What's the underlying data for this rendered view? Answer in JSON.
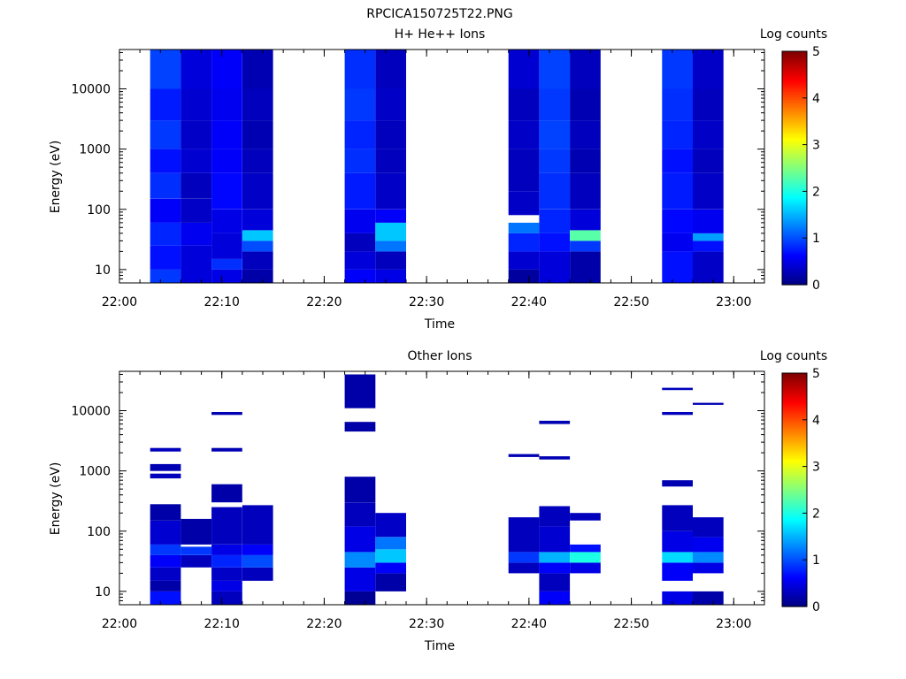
{
  "figure": {
    "title": "RPCICA150725T22.PNG"
  },
  "colorbar": {
    "label": "Log counts",
    "range": [
      0,
      5
    ],
    "ticks": [
      "0",
      "1",
      "2",
      "3",
      "4",
      "5"
    ]
  },
  "chart_data": [
    {
      "type": "heatmap",
      "title": "H+ He++ Ions",
      "xlabel": "Time",
      "ylabel": "Energy (eV)",
      "xlim": [
        "22:00",
        "23:03"
      ],
      "xticks": [
        "22:00",
        "22:10",
        "22:20",
        "22:30",
        "22:40",
        "22:50",
        "23:00"
      ],
      "yscale": "log",
      "ylim": [
        6,
        45000
      ],
      "yticks": [
        "10",
        "100",
        "1000",
        "10000"
      ],
      "zlabel": "Log counts",
      "zlim": [
        0,
        5
      ],
      "columns": [
        {
          "start": "22:03",
          "end": "22:06",
          "bands": [
            [
              6,
              10,
              0.9
            ],
            [
              10,
              25,
              0.7
            ],
            [
              25,
              60,
              0.8
            ],
            [
              60,
              150,
              0.6
            ],
            [
              150,
              400,
              0.85
            ],
            [
              400,
              1000,
              0.7
            ],
            [
              1000,
              3000,
              0.9
            ],
            [
              3000,
              10000,
              0.75
            ],
            [
              10000,
              45000,
              0.95
            ]
          ]
        },
        {
          "start": "22:06",
          "end": "22:09",
          "bands": [
            [
              6,
              25,
              0.45
            ],
            [
              25,
              60,
              0.55
            ],
            [
              60,
              150,
              0.35
            ],
            [
              150,
              400,
              0.3
            ],
            [
              400,
              1000,
              0.4
            ],
            [
              1000,
              3000,
              0.35
            ],
            [
              3000,
              10000,
              0.4
            ],
            [
              10000,
              45000,
              0.45
            ]
          ]
        },
        {
          "start": "22:09",
          "end": "22:12",
          "bands": [
            [
              6,
              10,
              0.5
            ],
            [
              10,
              15,
              0.85
            ],
            [
              15,
              40,
              0.45
            ],
            [
              40,
              100,
              0.5
            ],
            [
              100,
              400,
              0.65
            ],
            [
              400,
              1000,
              0.6
            ],
            [
              1000,
              3000,
              0.6
            ],
            [
              3000,
              10000,
              0.55
            ],
            [
              10000,
              45000,
              0.6
            ]
          ]
        },
        {
          "start": "22:12",
          "end": "22:15",
          "bands": [
            [
              6,
              10,
              0.2
            ],
            [
              10,
              20,
              0.3
            ],
            [
              20,
              30,
              1.0
            ],
            [
              30,
              45,
              1.6
            ],
            [
              45,
              100,
              0.45
            ],
            [
              100,
              400,
              0.35
            ],
            [
              400,
              1000,
              0.3
            ],
            [
              1000,
              3000,
              0.25
            ],
            [
              3000,
              10000,
              0.3
            ],
            [
              10000,
              45000,
              0.25
            ]
          ]
        },
        {
          "start": "22:22",
          "end": "22:25",
          "bands": [
            [
              6,
              10,
              0.6
            ],
            [
              10,
              20,
              0.45
            ],
            [
              20,
              40,
              0.3
            ],
            [
              40,
              100,
              0.55
            ],
            [
              100,
              400,
              0.75
            ],
            [
              400,
              1000,
              0.85
            ],
            [
              1000,
              3000,
              0.8
            ],
            [
              3000,
              10000,
              0.9
            ],
            [
              10000,
              45000,
              0.85
            ]
          ]
        },
        {
          "start": "22:25",
          "end": "22:28",
          "bands": [
            [
              6,
              10,
              0.5
            ],
            [
              10,
              20,
              0.3
            ],
            [
              20,
              30,
              1.2
            ],
            [
              30,
              60,
              1.6
            ],
            [
              60,
              100,
              0.6
            ],
            [
              100,
              400,
              0.35
            ],
            [
              400,
              1000,
              0.3
            ],
            [
              1000,
              3000,
              0.3
            ],
            [
              3000,
              10000,
              0.35
            ],
            [
              10000,
              45000,
              0.3
            ]
          ]
        },
        {
          "start": "22:38",
          "end": "22:41",
          "bands": [
            [
              6,
              10,
              0.15
            ],
            [
              10,
              20,
              0.4
            ],
            [
              20,
              40,
              0.8
            ],
            [
              40,
              60,
              1.2
            ],
            [
              80,
              200,
              0.35
            ],
            [
              200,
              1000,
              0.3
            ],
            [
              1000,
              3000,
              0.35
            ],
            [
              3000,
              10000,
              0.3
            ],
            [
              10000,
              45000,
              0.4
            ]
          ]
        },
        {
          "start": "22:41",
          "end": "22:44",
          "bands": [
            [
              6,
              20,
              0.45
            ],
            [
              20,
              40,
              0.7
            ],
            [
              40,
              100,
              0.8
            ],
            [
              100,
              400,
              0.85
            ],
            [
              400,
              1000,
              0.9
            ],
            [
              1000,
              3000,
              0.95
            ],
            [
              3000,
              10000,
              0.9
            ],
            [
              10000,
              45000,
              0.95
            ]
          ]
        },
        {
          "start": "22:44",
          "end": "22:47",
          "bands": [
            [
              6,
              20,
              0.2
            ],
            [
              20,
              30,
              0.9
            ],
            [
              30,
              45,
              2.3
            ],
            [
              45,
              100,
              0.45
            ],
            [
              100,
              400,
              0.3
            ],
            [
              400,
              1000,
              0.25
            ],
            [
              1000,
              3000,
              0.3
            ],
            [
              3000,
              10000,
              0.25
            ],
            [
              10000,
              45000,
              0.3
            ]
          ]
        },
        {
          "start": "22:53",
          "end": "22:56",
          "bands": [
            [
              6,
              20,
              0.7
            ],
            [
              20,
              40,
              0.55
            ],
            [
              40,
              100,
              0.65
            ],
            [
              100,
              400,
              0.75
            ],
            [
              400,
              1000,
              0.7
            ],
            [
              1000,
              3000,
              0.8
            ],
            [
              3000,
              10000,
              0.85
            ],
            [
              10000,
              45000,
              0.9
            ]
          ]
        },
        {
          "start": "22:56",
          "end": "22:59",
          "bands": [
            [
              6,
              20,
              0.35
            ],
            [
              20,
              30,
              0.7
            ],
            [
              30,
              40,
              1.4
            ],
            [
              40,
              100,
              0.55
            ],
            [
              100,
              400,
              0.35
            ],
            [
              400,
              1000,
              0.3
            ],
            [
              1000,
              3000,
              0.35
            ],
            [
              3000,
              10000,
              0.3
            ],
            [
              10000,
              45000,
              0.35
            ]
          ]
        }
      ]
    },
    {
      "type": "heatmap",
      "title": "Other Ions",
      "xlabel": "Time",
      "ylabel": "Energy (eV)",
      "xlim": [
        "22:00",
        "23:03"
      ],
      "xticks": [
        "22:00",
        "22:10",
        "22:20",
        "22:30",
        "22:40",
        "22:50",
        "23:00"
      ],
      "yscale": "log",
      "ylim": [
        6,
        45000
      ],
      "yticks": [
        "10",
        "100",
        "1000",
        "10000"
      ],
      "zlabel": "Log counts",
      "zlim": [
        0,
        5
      ],
      "columns": [
        {
          "start": "22:03",
          "end": "22:06",
          "bands": [
            [
              6,
              10,
              0.7
            ],
            [
              10,
              15,
              0.2
            ],
            [
              15,
              25,
              0.35
            ],
            [
              25,
              40,
              0.6
            ],
            [
              40,
              60,
              0.9
            ],
            [
              60,
              150,
              0.4
            ],
            [
              150,
              280,
              0.2
            ],
            [
              750,
              900,
              0.3
            ],
            [
              1000,
              1300,
              0.25
            ],
            [
              2100,
              2400,
              0.3
            ]
          ]
        },
        {
          "start": "22:06",
          "end": "22:09",
          "bands": [
            [
              25,
              40,
              0.3
            ],
            [
              40,
              55,
              0.9
            ],
            [
              60,
              160,
              0.2
            ]
          ]
        },
        {
          "start": "22:09",
          "end": "22:12",
          "bands": [
            [
              6,
              10,
              0.3
            ],
            [
              10,
              15,
              0.5
            ],
            [
              15,
              25,
              0.35
            ],
            [
              25,
              40,
              0.8
            ],
            [
              40,
              60,
              0.5
            ],
            [
              60,
              250,
              0.3
            ],
            [
              300,
              600,
              0.2
            ],
            [
              2100,
              2400,
              0.25
            ],
            [
              8500,
              9500,
              0.25
            ]
          ]
        },
        {
          "start": "22:12",
          "end": "22:15",
          "bands": [
            [
              15,
              25,
              0.3
            ],
            [
              25,
              40,
              1.0
            ],
            [
              40,
              60,
              0.6
            ],
            [
              60,
              270,
              0.3
            ]
          ]
        },
        {
          "start": "22:22",
          "end": "22:25",
          "bands": [
            [
              6,
              10,
              0.1
            ],
            [
              10,
              25,
              0.5
            ],
            [
              25,
              45,
              1.3
            ],
            [
              45,
              120,
              0.5
            ],
            [
              120,
              300,
              0.3
            ],
            [
              300,
              800,
              0.2
            ],
            [
              4500,
              6500,
              0.2
            ],
            [
              11000,
              40000,
              0.2
            ]
          ]
        },
        {
          "start": "22:25",
          "end": "22:28",
          "bands": [
            [
              10,
              20,
              0.2
            ],
            [
              20,
              30,
              0.6
            ],
            [
              30,
              50,
              1.6
            ],
            [
              50,
              80,
              1.2
            ],
            [
              80,
              200,
              0.35
            ]
          ]
        },
        {
          "start": "22:38",
          "end": "22:41",
          "bands": [
            [
              20,
              30,
              0.3
            ],
            [
              30,
              45,
              0.9
            ],
            [
              45,
              170,
              0.3
            ],
            [
              1700,
              1900,
              0.25
            ]
          ]
        },
        {
          "start": "22:41",
          "end": "22:44",
          "bands": [
            [
              6,
              10,
              0.6
            ],
            [
              10,
              20,
              0.3
            ],
            [
              20,
              30,
              0.6
            ],
            [
              30,
              45,
              1.5
            ],
            [
              45,
              120,
              0.4
            ],
            [
              120,
              260,
              0.3
            ],
            [
              1550,
              1750,
              0.25
            ],
            [
              6000,
              6800,
              0.25
            ]
          ]
        },
        {
          "start": "22:44",
          "end": "22:47",
          "bands": [
            [
              20,
              30,
              0.5
            ],
            [
              30,
              45,
              2.0
            ],
            [
              45,
              60,
              0.7
            ],
            [
              150,
              200,
              0.3
            ]
          ]
        },
        {
          "start": "22:53",
          "end": "22:56",
          "bands": [
            [
              6,
              10,
              0.5
            ],
            [
              15,
              30,
              0.6
            ],
            [
              30,
              45,
              1.7
            ],
            [
              45,
              100,
              0.5
            ],
            [
              100,
              270,
              0.3
            ],
            [
              550,
              700,
              0.25
            ],
            [
              8500,
              9500,
              0.3
            ],
            [
              22000,
              24000,
              0.3
            ]
          ]
        },
        {
          "start": "22:56",
          "end": "22:59",
          "bands": [
            [
              6,
              10,
              0.2
            ],
            [
              20,
              30,
              0.5
            ],
            [
              30,
              45,
              1.3
            ],
            [
              45,
              80,
              0.55
            ],
            [
              80,
              170,
              0.3
            ],
            [
              12500,
              13500,
              0.25
            ]
          ]
        }
      ]
    }
  ]
}
